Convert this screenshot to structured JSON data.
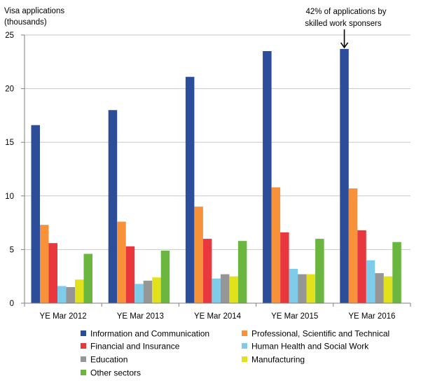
{
  "chart_data": {
    "type": "bar",
    "ylabel_lines": [
      "Visa applications",
      "(thousands)"
    ],
    "xlabel": "",
    "ylim": [
      0,
      25
    ],
    "yticks": [
      0,
      5,
      10,
      15,
      20,
      25
    ],
    "grid": true,
    "legend_position": "bottom",
    "categories": [
      "YE Mar 2012",
      "YE Mar 2013",
      "YE Mar 2014",
      "YE Mar 2015",
      "YE Mar 2016"
    ],
    "series": [
      {
        "name": "Information and Communication",
        "color": "#2c4d9a",
        "values": [
          16.6,
          18.0,
          21.1,
          23.5,
          23.7
        ]
      },
      {
        "name": "Professional, Scientific and Technical",
        "color": "#f7923a",
        "values": [
          7.3,
          7.6,
          9.0,
          10.8,
          10.7
        ]
      },
      {
        "name": "Financial and Insurance",
        "color": "#e8383d",
        "values": [
          5.6,
          5.3,
          6.0,
          6.6,
          6.8
        ]
      },
      {
        "name": "Human Health and Social Work",
        "color": "#7fcbea",
        "values": [
          1.6,
          1.8,
          2.3,
          3.2,
          4.0
        ]
      },
      {
        "name": "Education",
        "color": "#969696",
        "values": [
          1.5,
          2.1,
          2.7,
          2.7,
          2.8
        ]
      },
      {
        "name": "Manufacturing",
        "color": "#e2e21c",
        "values": [
          2.2,
          2.4,
          2.5,
          2.7,
          2.5
        ]
      },
      {
        "name": "Other sectors",
        "color": "#6ab63e",
        "values": [
          4.6,
          4.9,
          5.8,
          6.0,
          5.7
        ]
      }
    ],
    "annotation": {
      "lines": [
        "42% of applications by",
        "skilled work sponsers"
      ],
      "category": "YE Mar 2016",
      "series": "Information and Communication"
    }
  },
  "colors": {
    "gridline": "#c8c8c8",
    "axis": "#7f7f7f"
  }
}
